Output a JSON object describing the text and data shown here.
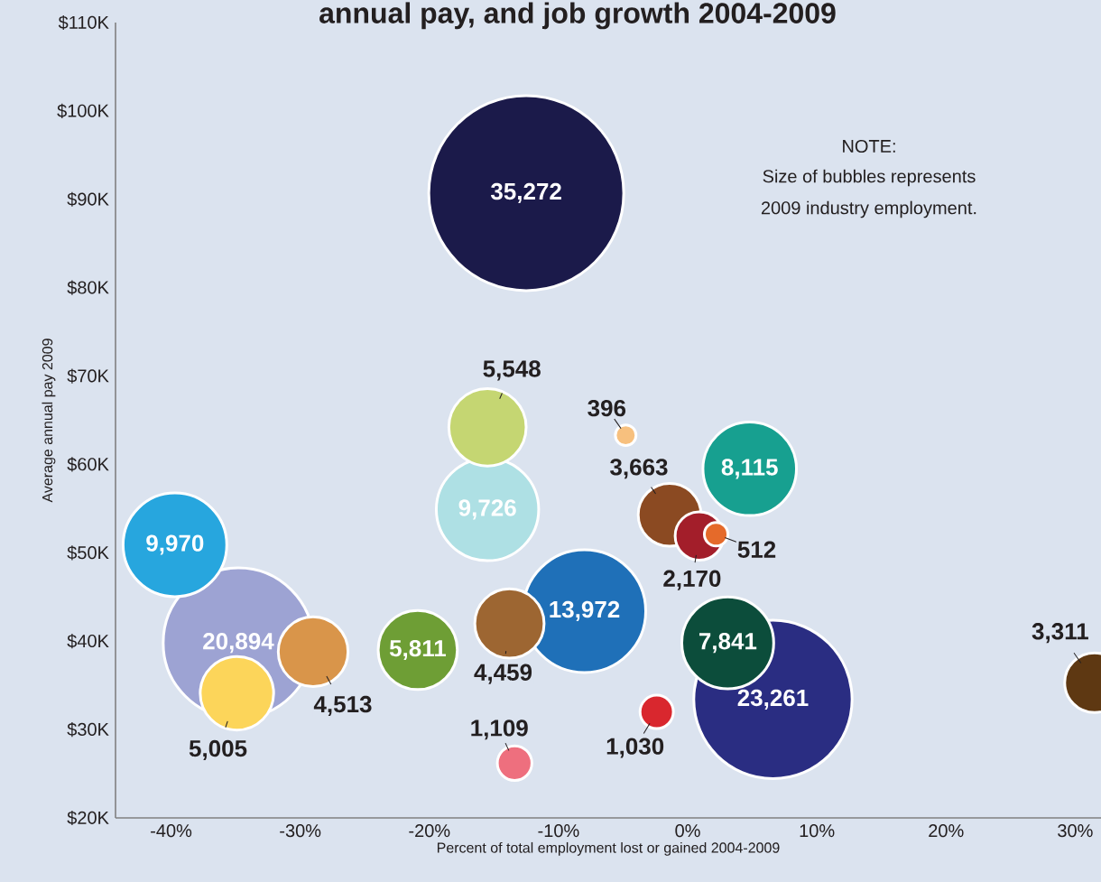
{
  "chart_data": {
    "type": "bubble",
    "title": "annual pay, and job growth 2004-2009",
    "xlabel": "Percent of total employment lost or gained 2004-2009",
    "ylabel": "Average annual pay 2009",
    "annotations": [
      "NOTE:",
      "Size of bubbles represents",
      "2009 industry employment."
    ],
    "x": [
      -12.5,
      -15.5,
      -4.8,
      4.8,
      -15.5,
      -1.4,
      0.9,
      2.2,
      -39.7,
      -34.8,
      -29.0,
      -34.9,
      -20.9,
      -13.8,
      -8.0,
      3.1,
      6.6,
      -2.4,
      -13.4,
      31.5
    ],
    "values": [
      90.7,
      64.2,
      63.3,
      59.5,
      54.9,
      54.3,
      51.9,
      52.1,
      50.9,
      39.8,
      38.8,
      34.1,
      39.0,
      42.0,
      43.4,
      39.8,
      33.4,
      32.0,
      26.2,
      35.3
    ],
    "sizes": [
      35272,
      5548,
      396,
      8115,
      9726,
      3663,
      2170,
      512,
      9970,
      20894,
      4513,
      5005,
      5811,
      4459,
      13972,
      7841,
      23261,
      1030,
      1109,
      3311
    ],
    "value_labels": [
      "35,272",
      "5,548",
      "396",
      "8,115",
      "9,726",
      "3,663",
      "2,170",
      "512",
      "9,970",
      "20,894",
      "4,513",
      "5,005",
      "5,811",
      "4,459",
      "13,972",
      "7,841",
      "23,261",
      "1,030",
      "1,109",
      "3,311"
    ],
    "colors": [
      "#1b1a4a",
      "#c5d672",
      "#f7c07e",
      "#17a090",
      "#aee0e4",
      "#8b4a22",
      "#a31e2a",
      "#e56a2a",
      "#27a6de",
      "#9da3d3",
      "#d9954a",
      "#fcd55a",
      "#6e9e35",
      "#9d6632",
      "#1f70b8",
      "#0c4d3b",
      "#2a2d82",
      "#d9272e",
      "#ee6f7e",
      "#5e3812"
    ],
    "xlim": [
      -44.3,
      32
    ],
    "xticks": [
      {
        "value": -40,
        "label": "-40%"
      },
      {
        "value": -30,
        "label": "-30%"
      },
      {
        "value": -20,
        "label": "-20%"
      },
      {
        "value": -10,
        "label": "-10%"
      },
      {
        "value": 0,
        "label": "0%"
      },
      {
        "value": 10,
        "label": "10%"
      },
      {
        "value": 20,
        "label": "20%"
      },
      {
        "value": 30,
        "label": "30%"
      }
    ],
    "ylim": [
      20,
      110
    ],
    "yticks": [
      {
        "value": 20,
        "label": "$20K"
      },
      {
        "value": 30,
        "label": "$30K"
      },
      {
        "value": 40,
        "label": "$40K"
      },
      {
        "value": 50,
        "label": "$50K"
      },
      {
        "value": 60,
        "label": "$60K"
      },
      {
        "value": 70,
        "label": "$70K"
      },
      {
        "value": 80,
        "label": "$80K"
      },
      {
        "value": 90,
        "label": "$90K"
      },
      {
        "value": 100,
        "label": "$100K"
      },
      {
        "value": 110,
        "label": "$110K"
      }
    ]
  }
}
